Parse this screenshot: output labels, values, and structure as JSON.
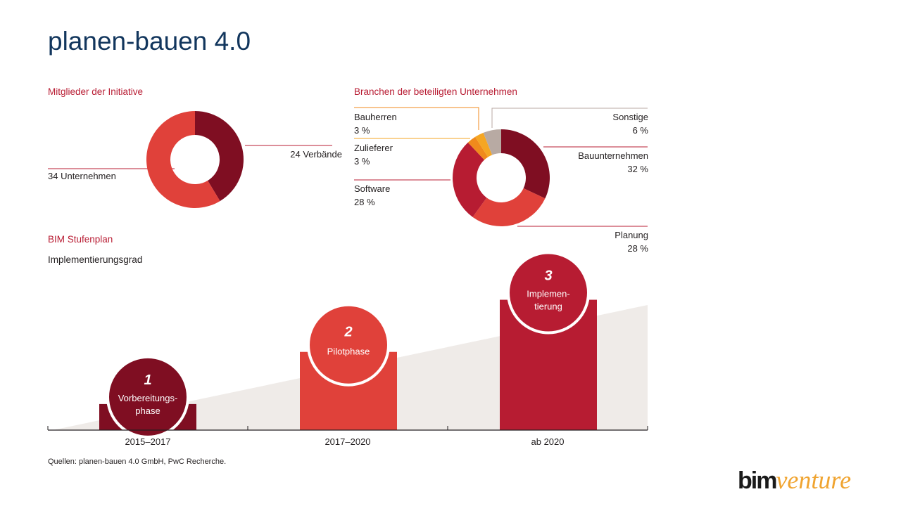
{
  "title": "planen-bauen 4.0",
  "source": "Quellen: planen-bauen 4.0 GmbH, PwC Recherche.",
  "logo": {
    "part1": "bim",
    "part2": "venture"
  },
  "colors": {
    "title": "#12365d",
    "heading": "#b81c33",
    "dark_red": "#7f0e22",
    "red": "#e0413a",
    "crimson": "#b71c32",
    "orange": "#f08a1c",
    "orange_light": "#f5a623",
    "gray": "#b8aaa3",
    "wedge": "#efebe8"
  },
  "chart_data": [
    {
      "type": "pie",
      "title": "Mitglieder der Initiative",
      "slices": [
        {
          "label": "24 Verbände",
          "value": 24,
          "color": "#7f0e22"
        },
        {
          "label": "34 Unternehmen",
          "value": 34,
          "color": "#e0413a"
        }
      ]
    },
    {
      "type": "pie",
      "title": "Branchen der beteiligten Unternehmen",
      "slices": [
        {
          "label": "Bauunternehmen",
          "value_label": "32 %",
          "value": 32,
          "color": "#7f0e22"
        },
        {
          "label": "Planung",
          "value_label": "28 %",
          "value": 28,
          "color": "#e0413a"
        },
        {
          "label": "Software",
          "value_label": "28 %",
          "value": 28,
          "color": "#b71c32"
        },
        {
          "label": "Zulieferer",
          "value_label": "3 %",
          "value": 3,
          "color": "#f08a1c"
        },
        {
          "label": "Bauherren",
          "value_label": "3 %",
          "value": 3,
          "color": "#f5a623"
        },
        {
          "label": "Sonstige",
          "value_label": "6 %",
          "value": 6,
          "color": "#b8aaa3"
        }
      ]
    },
    {
      "type": "bar",
      "title": "BIM Stufenplan",
      "ylabel": "Implementierungsgrad",
      "categories": [
        "2015–2017",
        "2017–2020",
        "ab 2020"
      ],
      "values": [
        1,
        3,
        5
      ],
      "ylim": [
        0,
        5.5
      ],
      "phases": [
        {
          "number": "1",
          "line1": "Vorbereitungs-",
          "line2": "phase",
          "color": "#7f0e22"
        },
        {
          "number": "2",
          "line1": "Pilotphase",
          "line2": "",
          "color": "#e0413a"
        },
        {
          "number": "3",
          "line1": "Implemen-",
          "line2": "tierung",
          "color": "#b71c32"
        }
      ]
    }
  ]
}
